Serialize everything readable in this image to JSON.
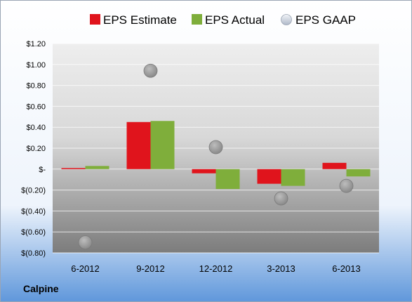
{
  "company": "Calpine",
  "colors": {
    "estimate": "#e0141c",
    "actual": "#7fae3b",
    "gaap": "#9e9e9e"
  },
  "chart_data": {
    "type": "bar",
    "categories": [
      "6-2012",
      "9-2012",
      "12-2012",
      "3-2013",
      "6-2013"
    ],
    "series": [
      {
        "name": "EPS Estimate",
        "type": "bar",
        "values": [
          0.01,
          0.45,
          -0.04,
          -0.14,
          0.06
        ]
      },
      {
        "name": "EPS Actual",
        "type": "bar",
        "values": [
          0.03,
          0.46,
          -0.19,
          -0.16,
          -0.07
        ]
      },
      {
        "name": "EPS GAAP",
        "type": "scatter",
        "values": [
          -0.7,
          0.94,
          0.21,
          -0.28,
          -0.16
        ]
      }
    ],
    "ylim": [
      -0.8,
      1.2
    ],
    "yticks": [
      1.2,
      1.0,
      0.8,
      0.6,
      0.4,
      0.2,
      0.0,
      -0.2,
      -0.4,
      -0.6,
      -0.8
    ],
    "ytick_labels": [
      "$1.20",
      "$1.00",
      "$0.80",
      "$0.60",
      "$0.40",
      "$0.20",
      "$-",
      "$(0.20)",
      "$(0.40)",
      "$(0.60)",
      "$(0.80)"
    ],
    "legend_position": "top",
    "grid": true
  }
}
